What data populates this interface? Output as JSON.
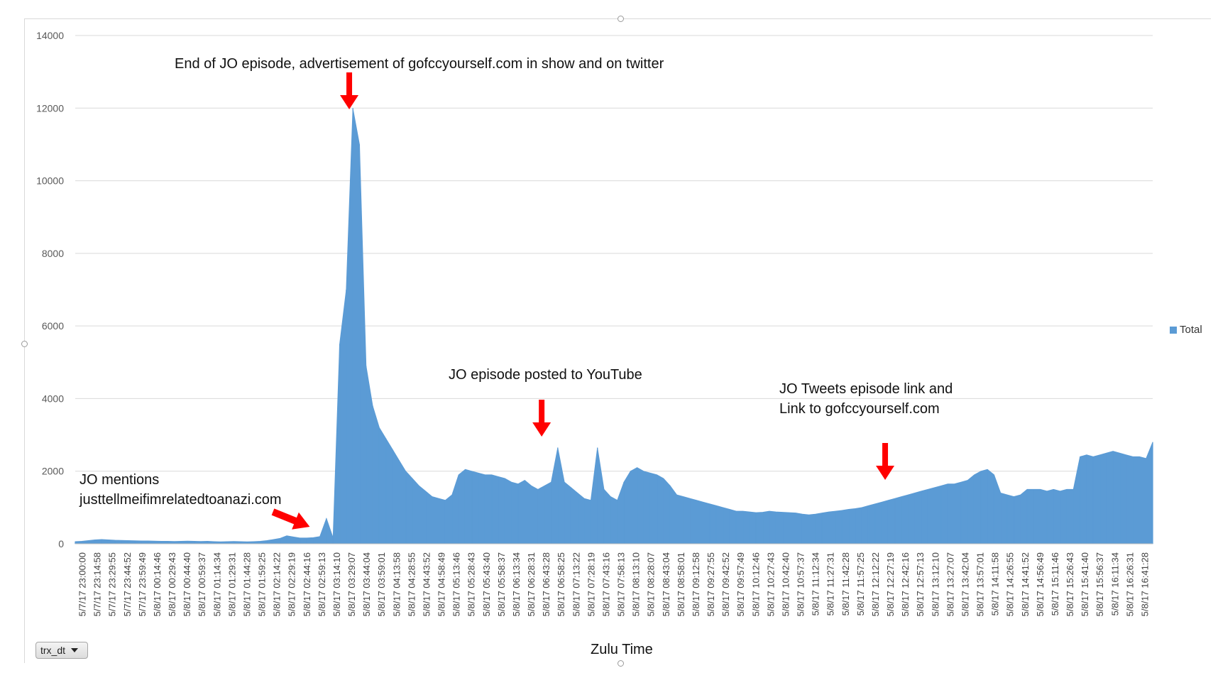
{
  "chart_data": {
    "type": "area",
    "title": "",
    "xlabel": "Zulu Time",
    "ylabel": "",
    "ylim": [
      0,
      14000
    ],
    "yticks": [
      0,
      2000,
      4000,
      6000,
      8000,
      10000,
      12000,
      14000
    ],
    "grid": true,
    "legend_placement": "right",
    "color": "#5b9bd5",
    "series": [
      {
        "name": "Total",
        "values": [
          60,
          70,
          90,
          110,
          120,
          110,
          100,
          95,
          90,
          85,
          80,
          80,
          75,
          70,
          70,
          65,
          70,
          75,
          70,
          65,
          70,
          60,
          55,
          60,
          65,
          60,
          55,
          60,
          70,
          90,
          120,
          150,
          220,
          190,
          160,
          160,
          170,
          200,
          700,
          170,
          5500,
          7000,
          12000,
          11000,
          4900,
          3800,
          3200,
          2900,
          2600,
          2300,
          2000,
          1800,
          1600,
          1450,
          1300,
          1250,
          1200,
          1350,
          1900,
          2050,
          2000,
          1950,
          1900,
          1900,
          1850,
          1800,
          1700,
          1650,
          1750,
          1600,
          1500,
          1600,
          1700,
          2650,
          1700,
          1550,
          1400,
          1250,
          1200,
          2650,
          1500,
          1300,
          1200,
          1700,
          2000,
          2100,
          2000,
          1950,
          1900,
          1800,
          1600,
          1350,
          1300,
          1250,
          1200,
          1150,
          1100,
          1050,
          1000,
          950,
          900,
          900,
          880,
          860,
          870,
          900,
          880,
          870,
          860,
          850,
          820,
          800,
          820,
          850,
          880,
          900,
          920,
          950,
          970,
          1000,
          1050,
          1100,
          1150,
          1200,
          1250,
          1300,
          1350,
          1400,
          1450,
          1500,
          1550,
          1600,
          1650,
          1650,
          1700,
          1750,
          1900,
          2000,
          2050,
          1900,
          1400,
          1350,
          1300,
          1350,
          1500,
          1500,
          1500,
          1450,
          1500,
          1450,
          1500,
          1500,
          2400,
          2450,
          2400,
          2450,
          2500,
          2550,
          2500,
          2450,
          2400,
          2400,
          2350,
          2800
        ]
      }
    ],
    "x_ticks": [
      "5/7/17 23:00:00",
      "5/7/17 23:14:58",
      "5/7/17 23:29:55",
      "5/7/17 23:44:52",
      "5/7/17 23:59:49",
      "5/8/17 00:14:46",
      "5/8/17 00:29:43",
      "5/8/17 00:44:40",
      "5/8/17 00:59:37",
      "5/8/17 01:14:34",
      "5/8/17 01:29:31",
      "5/8/17 01:44:28",
      "5/8/17 01:59:25",
      "5/8/17 02:14:22",
      "5/8/17 02:29:19",
      "5/8/17 02:44:16",
      "5/8/17 02:59:13",
      "5/8/17 03:14:10",
      "5/8/17 03:29:07",
      "5/8/17 03:44:04",
      "5/8/17 03:59:01",
      "5/8/17 04:13:58",
      "5/8/17 04:28:55",
      "5/8/17 04:43:52",
      "5/8/17 04:58:49",
      "5/8/17 05:13:46",
      "5/8/17 05:28:43",
      "5/8/17 05:43:40",
      "5/8/17 05:58:37",
      "5/8/17 06:13:34",
      "5/8/17 06:28:31",
      "5/8/17 06:43:28",
      "5/8/17 06:58:25",
      "5/8/17 07:13:22",
      "5/8/17 07:28:19",
      "5/8/17 07:43:16",
      "5/8/17 07:58:13",
      "5/8/17 08:13:10",
      "5/8/17 08:28:07",
      "5/8/17 08:43:04",
      "5/8/17 08:58:01",
      "5/8/17 09:12:58",
      "5/8/17 09:27:55",
      "5/8/17 09:42:52",
      "5/8/17 09:57:49",
      "5/8/17 10:12:46",
      "5/8/17 10:27:43",
      "5/8/17 10:42:40",
      "5/8/17 10:57:37",
      "5/8/17 11:12:34",
      "5/8/17 11:27:31",
      "5/8/17 11:42:28",
      "5/8/17 11:57:25",
      "5/8/17 12:12:22",
      "5/8/17 12:27:19",
      "5/8/17 12:42:16",
      "5/8/17 12:57:13",
      "5/8/17 13:12:10",
      "5/8/17 13:27:07",
      "5/8/17 13:42:04",
      "5/8/17 13:57:01",
      "5/8/17 14:11:58",
      "5/8/17 14:26:55",
      "5/8/17 14:41:52",
      "5/8/17 14:56:49",
      "5/8/17 15:11:46",
      "5/8/17 15:26:43",
      "5/8/17 15:41:40",
      "5/8/17 15:56:37",
      "5/8/17 16:11:34",
      "5/8/17 16:26:31",
      "5/8/17 16:41:28"
    ],
    "annotations": [
      {
        "text": "End of JO episode, advertisement of gofccyourself.com in show and on twitter",
        "arrow_x_tick": "5/8/17 03:29:07",
        "arrow_direction": "down"
      },
      {
        "text": "JO episode posted to YouTube",
        "arrow_x_tick": "5/8/17 06:43:28",
        "arrow_direction": "down"
      },
      {
        "text_lines": [
          "JO Tweets episode link and",
          "Link to gofccyourself.com"
        ],
        "arrow_x_tick": "5/8/17 12:27:19",
        "arrow_direction": "down"
      },
      {
        "text_lines": [
          "JO mentions",
          "justtellmeifimrelatedtoanazi.com"
        ],
        "arrow_x_tick": "5/8/17 03:14:10",
        "arrow_direction": "down-right"
      }
    ],
    "arrow_color": "#ff0000"
  },
  "field_button": {
    "label": "trx_dt",
    "icon": "dropdown-caret-icon"
  }
}
